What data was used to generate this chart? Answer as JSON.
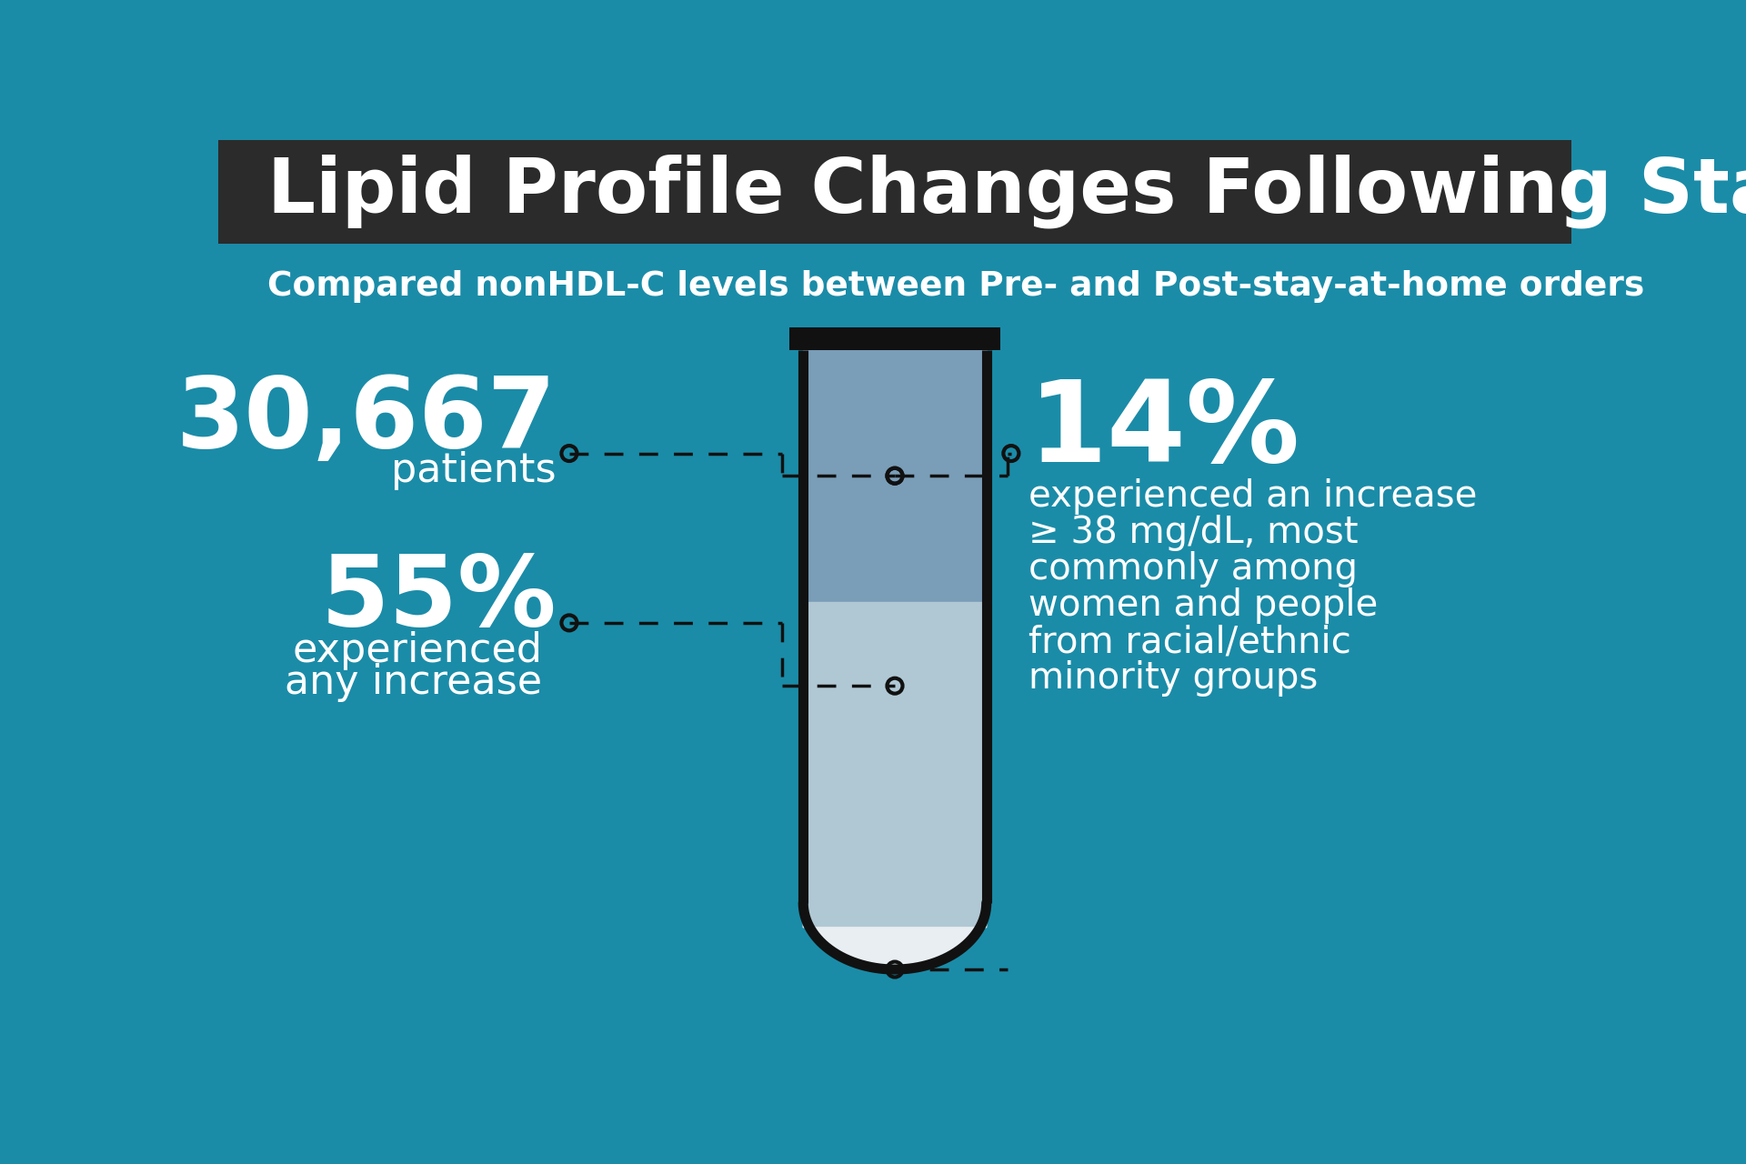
{
  "title": "Lipid Profile Changes Following Stay-At-Home Order",
  "subtitle": "Compared nonHDL-C levels between Pre- and Post-stay-at-home orders",
  "title_bg": "#2b2b2b",
  "body_bg": "#1a8ca8",
  "title_color": "#ffffff",
  "subtitle_color": "#ffffff",
  "stat1_value": "30,667",
  "stat1_label": "patients",
  "stat2_value": "55%",
  "stat2_label_line1": "experienced",
  "stat2_label_line2": "any increase",
  "stat3_value": "14%",
  "stat3_label_lines": [
    "experienced an increase",
    "≥ 38 mg/dL, most",
    "commonly among",
    "women and people",
    "from racial/ethnic",
    "minority groups"
  ],
  "tube_fill_top": "#7a9db8",
  "tube_fill_bottom": "#b0c8d4",
  "tube_white": "#e8eef2",
  "tube_outline": "#111111",
  "dash_color": "#111111"
}
